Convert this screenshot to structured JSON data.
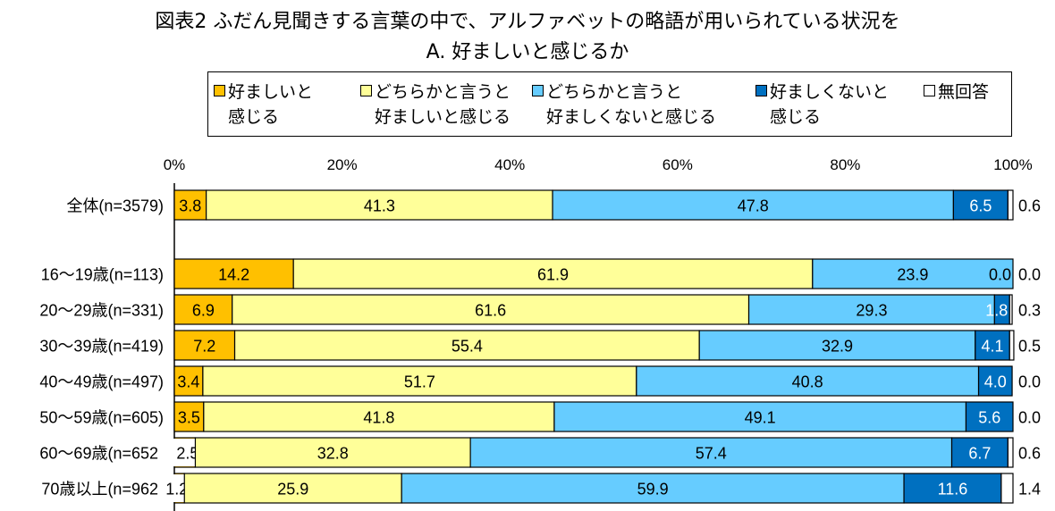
{
  "title_line1": "図表2  ふだん見聞きする言葉の中で、アルファベットの略語が用いられている状況を",
  "title_line2": "A.  好ましいと感じるか",
  "chart_data": {
    "type": "bar",
    "orientation": "horizontal-stacked-100",
    "xlim": [
      0,
      100
    ],
    "x_ticks": [
      "0%",
      "20%",
      "40%",
      "60%",
      "80%",
      "100%"
    ],
    "legend_position": "top",
    "series": [
      {
        "name": "好ましいと感じる",
        "legend_lines": [
          "好ましいと",
          "感じる"
        ],
        "color": "#FFC000",
        "values": [
          3.8,
          14.2,
          6.9,
          7.2,
          3.4,
          3.5,
          2.5,
          1.2
        ]
      },
      {
        "name": "どちらかと言うと好ましいと感じる",
        "legend_lines": [
          "どちらかと言うと",
          "好ましいと感じる"
        ],
        "color": "#FFFF99",
        "values": [
          41.3,
          61.9,
          61.6,
          55.4,
          51.7,
          41.8,
          32.8,
          25.9
        ]
      },
      {
        "name": "どちらかと言うと好ましくないと感じる",
        "legend_lines": [
          "どちらかと言うと",
          "好ましくないと感じる"
        ],
        "color": "#66CCFF",
        "values": [
          47.8,
          23.9,
          29.3,
          32.9,
          40.8,
          49.1,
          57.4,
          59.9
        ]
      },
      {
        "name": "好ましくないと感じる",
        "legend_lines": [
          "好ましくないと",
          "感じる"
        ],
        "color": "#0070C0",
        "values": [
          6.5,
          0.0,
          1.8,
          4.1,
          4.0,
          5.6,
          6.7,
          11.6
        ]
      },
      {
        "name": "無回答",
        "legend_lines": [
          "無回答",
          ""
        ],
        "color": "#FFFFFF",
        "values": [
          0.6,
          0.0,
          0.3,
          0.5,
          0.0,
          0.0,
          0.6,
          1.4
        ]
      }
    ],
    "categories": [
      "全体(n=3579)",
      "16～19歳(n=113)",
      "20～29歳(n=331)",
      "30～39歳(n=419)",
      "40～49歳(n=497)",
      "50～59歳(n=605)",
      "60～69歳(n=652)",
      "70歳以上(n=962)"
    ]
  }
}
